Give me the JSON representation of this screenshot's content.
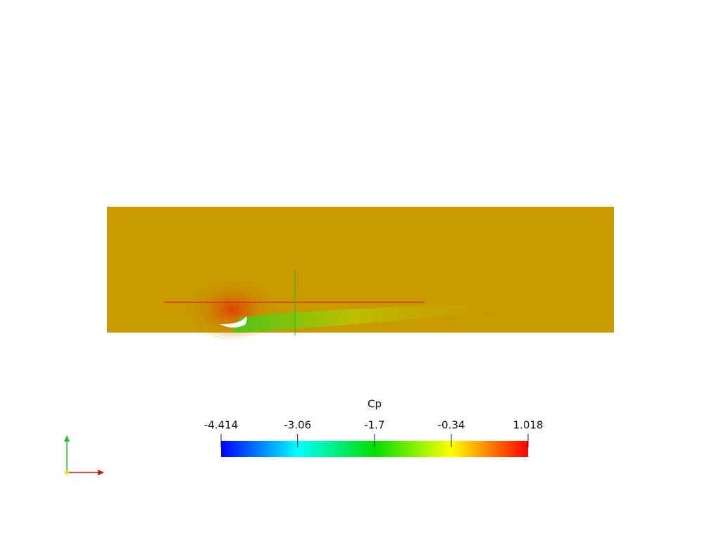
{
  "colorbar": {
    "title": "Cp",
    "range": [
      -4.414,
      1.018
    ],
    "ticks": [
      -4.414,
      -3.06,
      -1.7,
      -0.34,
      1.018
    ]
  }
}
